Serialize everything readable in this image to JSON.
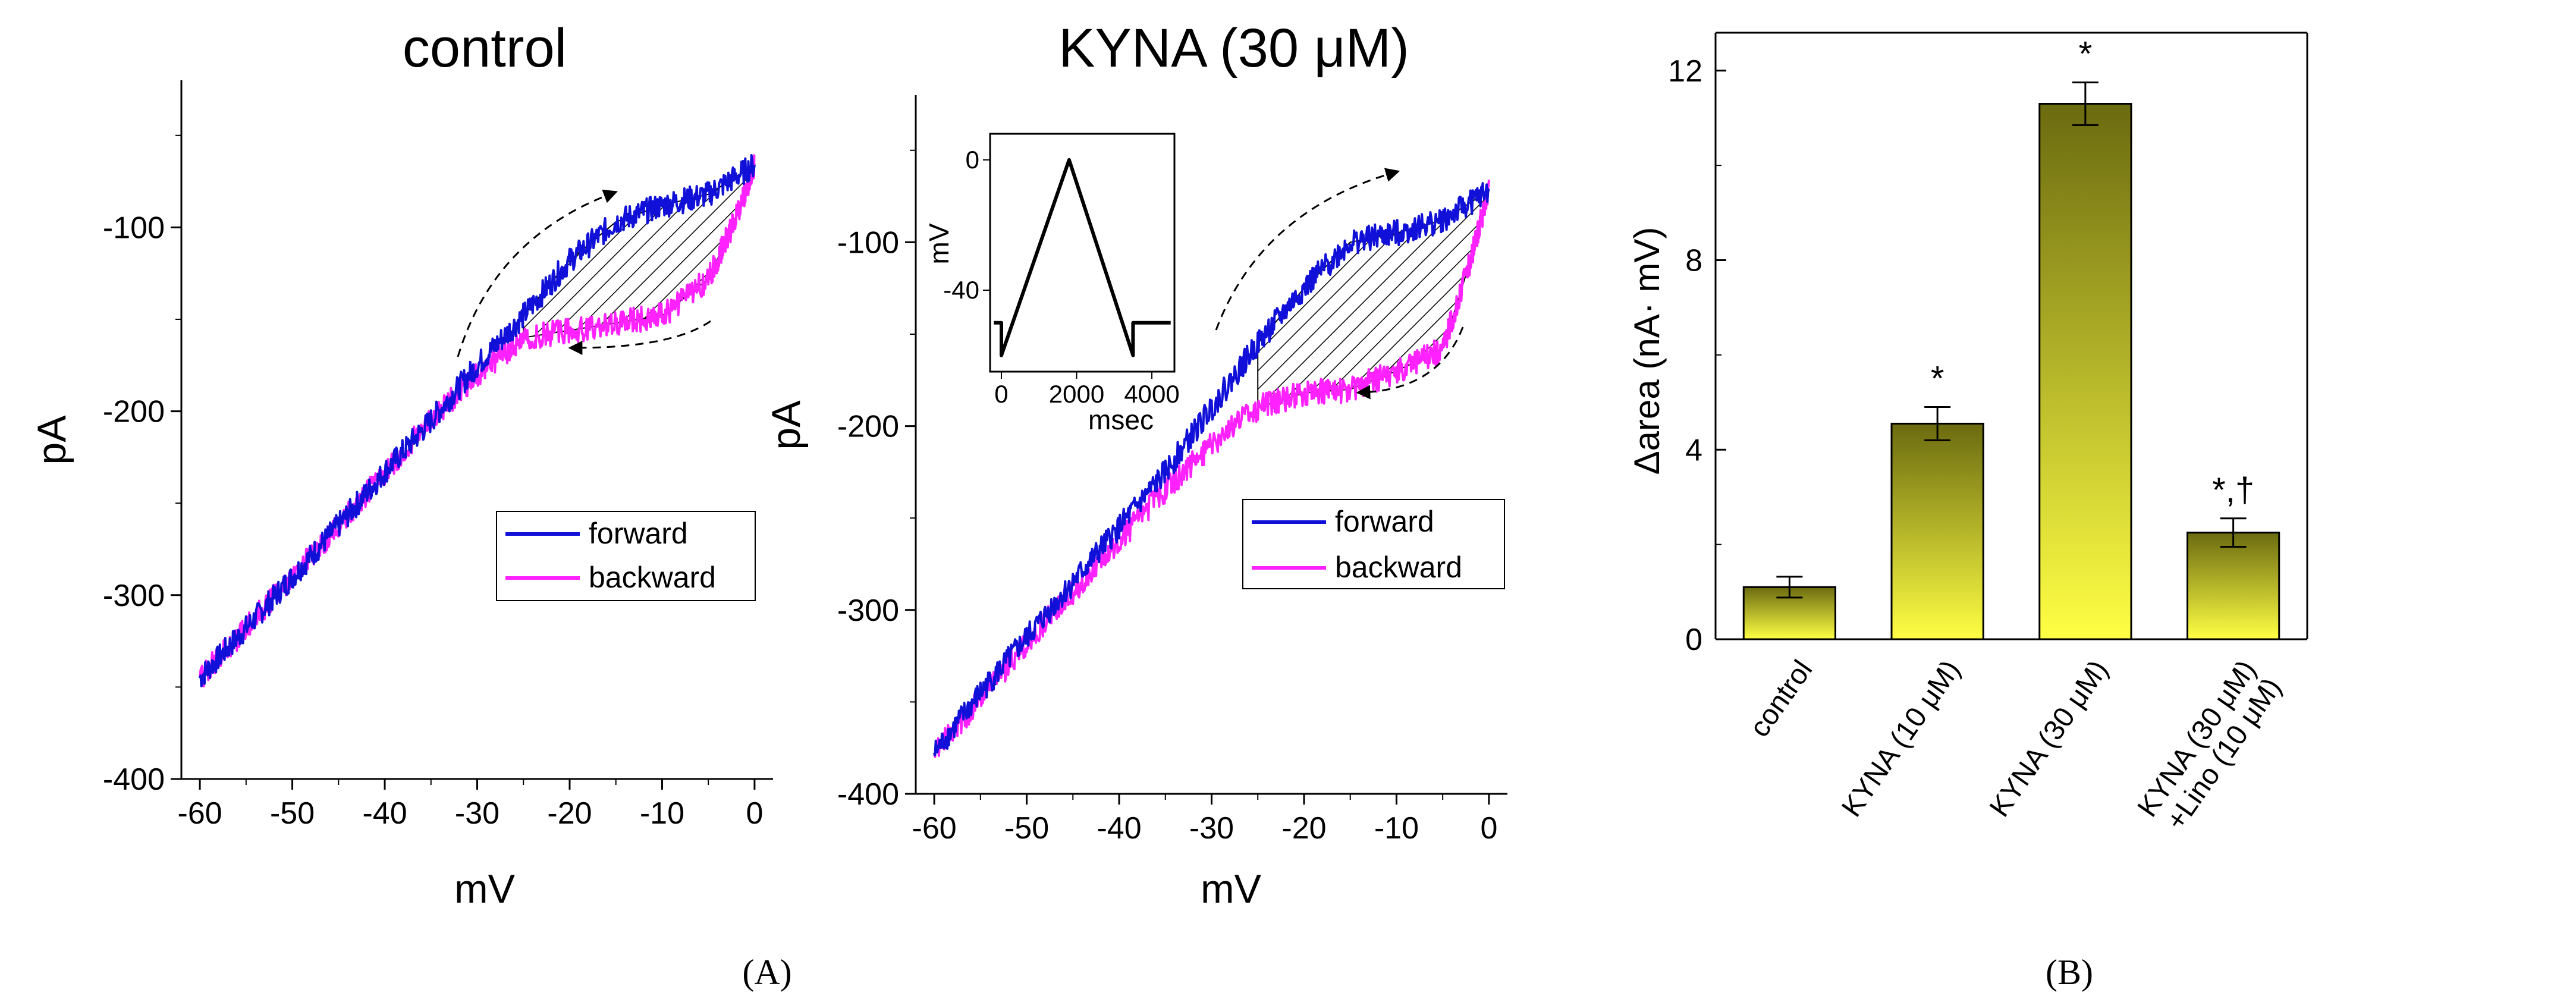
{
  "captions": {
    "a": "(A)",
    "b": "(B)"
  },
  "legend": {
    "forward": "forward",
    "backward": "backward"
  },
  "colors": {
    "forward": "#1010d8",
    "backward": "#ff22ff",
    "bar_top": "#6b6b10",
    "bar_bottom": "#ffff44",
    "hatch": "#000000"
  },
  "chart_data": [
    {
      "type": "line",
      "title": "control",
      "xlabel": "mV",
      "ylabel": "pA",
      "xlim": [
        -62,
        2
      ],
      "ylim": [
        -400,
        -20
      ],
      "xticks": [
        -60,
        -50,
        -40,
        -30,
        -20,
        -10,
        0
      ],
      "yticks": [
        -400,
        -300,
        -200,
        -100
      ],
      "series": [
        {
          "name": "forward",
          "x": [
            -60,
            -55,
            -50,
            -45,
            -40,
            -35,
            -30,
            -25,
            -20,
            -15,
            -10,
            -5,
            0
          ],
          "y": [
            -345,
            -318,
            -290,
            -262,
            -233,
            -205,
            -175,
            -148,
            -118,
            -97,
            -88,
            -82,
            -66
          ]
        },
        {
          "name": "backward",
          "x": [
            0,
            -2,
            -5,
            -10,
            -15,
            -20,
            -25,
            -30,
            -35,
            -40,
            -45,
            -50,
            -55,
            -60
          ],
          "y": [
            -66,
            -95,
            -128,
            -148,
            -152,
            -156,
            -160,
            -180,
            -205,
            -233,
            -262,
            -290,
            -318,
            -345
          ]
        }
      ],
      "annotations": [
        "dashed arrow forward (upper)",
        "dashed arrow backward (lower)",
        "hatched area between curves"
      ]
    },
    {
      "type": "line",
      "title": "KYNA (30 μM)",
      "xlabel": "mV",
      "ylabel": "pA",
      "xlim": [
        -62,
        2
      ],
      "ylim": [
        -400,
        -20
      ],
      "xticks": [
        -60,
        -50,
        -40,
        -30,
        -20,
        -10,
        0
      ],
      "yticks": [
        -400,
        -300,
        -200,
        -100
      ],
      "series": [
        {
          "name": "forward",
          "x": [
            -60,
            -55,
            -50,
            -45,
            -40,
            -35,
            -30,
            -25,
            -20,
            -15,
            -10,
            -5,
            0
          ],
          "y": [
            -378,
            -345,
            -315,
            -285,
            -255,
            -225,
            -190,
            -155,
            -125,
            -100,
            -95,
            -88,
            -72
          ]
        },
        {
          "name": "backward",
          "x": [
            0,
            -2,
            -5,
            -10,
            -15,
            -20,
            -25,
            -30,
            -35,
            -40,
            -45,
            -50,
            -55,
            -60
          ],
          "y": [
            -72,
            -110,
            -158,
            -170,
            -180,
            -182,
            -190,
            -210,
            -235,
            -262,
            -290,
            -318,
            -348,
            -378
          ]
        }
      ],
      "inset": {
        "type": "line",
        "xlabel": "msec",
        "ylabel": "mV",
        "xlim": [
          -300,
          4600
        ],
        "ylim": [
          -65,
          8
        ],
        "xticks": [
          0,
          2000,
          4000
        ],
        "yticks": [
          -40,
          0
        ],
        "series": [
          {
            "name": "ramp",
            "x": [
              -200,
              0,
              0,
              1800,
              3500,
              3500,
              4500
            ],
            "y": [
              -50,
              -50,
              -60,
              0,
              -60,
              -50,
              -50
            ]
          }
        ]
      }
    },
    {
      "type": "bar",
      "title": "",
      "xlabel": "",
      "ylabel": "Δarea (nA· mV)",
      "ylim": [
        0,
        12.8
      ],
      "yticks": [
        0,
        4,
        8,
        12
      ],
      "categories": [
        "control",
        "KYNA (10 μM)",
        "KYNA (30 μM)",
        "KYNA (30 μM) +Lino (10 μM)"
      ],
      "values": [
        1.1,
        4.55,
        11.3,
        2.25
      ],
      "errors": [
        0.22,
        0.35,
        0.45,
        0.3
      ],
      "significance": [
        "",
        "*",
        "*",
        "*,†"
      ]
    }
  ]
}
